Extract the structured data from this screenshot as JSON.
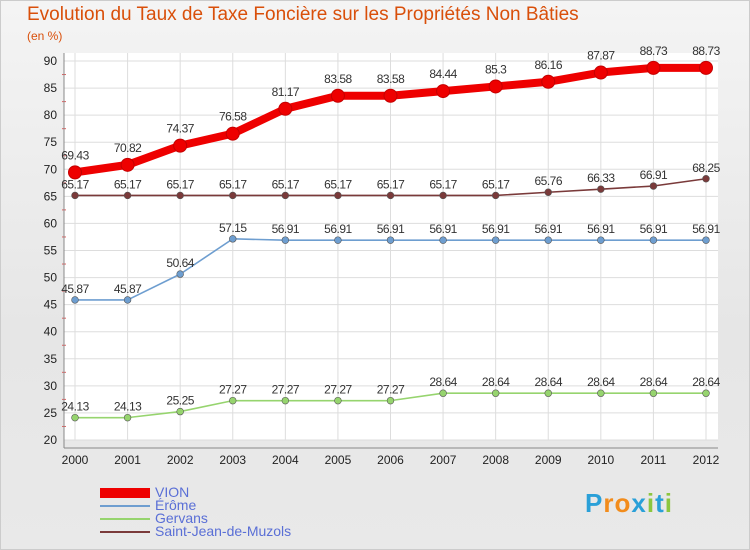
{
  "chart_data": {
    "type": "line",
    "title": "Evolution du Taux de Taxe Foncière sur les Propriétés Non Bâties",
    "ylabel": "(en %)",
    "xlabel": "",
    "ylim": [
      20,
      90
    ],
    "yticks": [
      "20",
      "25",
      "30",
      "35",
      "40",
      "45",
      "50",
      "55",
      "60",
      "65",
      "70",
      "75",
      "80",
      "85",
      "90"
    ],
    "categories": [
      "2000",
      "2001",
      "2002",
      "2003",
      "2004",
      "2005",
      "2006",
      "2007",
      "2008",
      "2009",
      "2010",
      "2011",
      "2012"
    ],
    "grid": true,
    "series": [
      {
        "name": "VION",
        "color": "#ee0000",
        "values": [
          69.43,
          70.82,
          74.37,
          76.58,
          81.17,
          83.58,
          83.58,
          84.44,
          85.3,
          86.16,
          87.87,
          88.73,
          88.73
        ],
        "labels": [
          "69.43",
          "70.82",
          "74.37",
          "76.58",
          "81.17",
          "83.58",
          "83.58",
          "84.44",
          "85.3",
          "86.16",
          "87.87",
          "88.73",
          "88.73"
        ]
      },
      {
        "name": "Érôme",
        "color": "#6e9ed0",
        "values": [
          45.87,
          45.87,
          50.64,
          57.15,
          56.91,
          56.91,
          56.91,
          56.91,
          56.91,
          56.91,
          56.91,
          56.91,
          56.91
        ],
        "labels": [
          "45.87",
          "45.87",
          "50.64",
          "57.15",
          "56.91",
          "56.91",
          "56.91",
          "56.91",
          "56.91",
          "56.91",
          "56.91",
          "56.91",
          "56.91"
        ]
      },
      {
        "name": "Gervans",
        "color": "#96d46e",
        "values": [
          24.13,
          24.13,
          25.25,
          27.27,
          27.27,
          27.27,
          27.27,
          28.64,
          28.64,
          28.64,
          28.64,
          28.64,
          28.64
        ],
        "labels": [
          "24.13",
          "24.13",
          "25.25",
          "27.27",
          "27.27",
          "27.27",
          "27.27",
          "28.64",
          "28.64",
          "28.64",
          "28.64",
          "28.64",
          "28.64"
        ]
      },
      {
        "name": "Saint-Jean-de-Muzols",
        "color": "#7a3a3a",
        "values": [
          65.17,
          65.17,
          65.17,
          65.17,
          65.17,
          65.17,
          65.17,
          65.17,
          65.17,
          65.76,
          66.33,
          66.91,
          68.25
        ],
        "labels": [
          "65.17",
          "65.17",
          "65.17",
          "65.17",
          "65.17",
          "65.17",
          "65.17",
          "65.17",
          "65.17",
          "65.76",
          "66.33",
          "66.91",
          "68.25"
        ]
      }
    ],
    "legend": "bottom-left"
  },
  "logo": {
    "letters": [
      "P",
      "r",
      "o",
      "x",
      "i",
      "t",
      "i"
    ],
    "colors": [
      "#2aa0d8",
      "#f28c1c",
      "#f28c1c",
      "#2aa0d8",
      "#8cc63f",
      "#2aa0d8",
      "#8cc63f"
    ]
  }
}
